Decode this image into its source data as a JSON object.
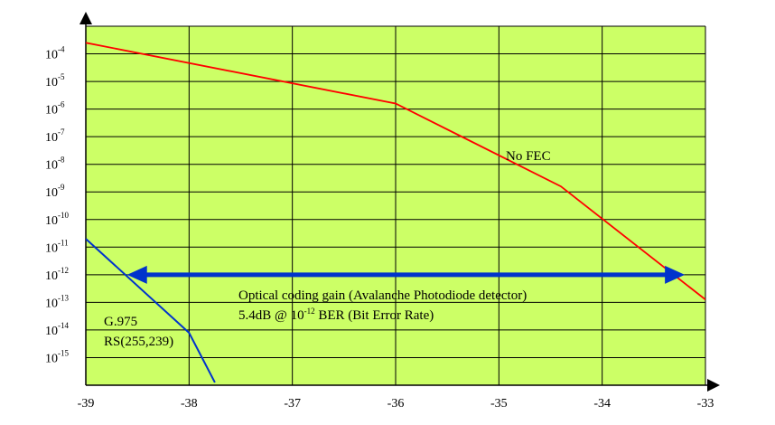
{
  "chart_data": {
    "type": "line",
    "title": "",
    "xlabel": "",
    "ylabel": "",
    "xlim": [
      -39,
      -33
    ],
    "y_scale": "log",
    "y_exponent_range": [
      -16,
      -3
    ],
    "grid": true,
    "plot_background": "#ccff66",
    "x_ticks": [
      "-39",
      "-38",
      "-37",
      "-36",
      "-35",
      "-34",
      "-33"
    ],
    "y_ticks": [
      {
        "base": "10",
        "exp": "-4"
      },
      {
        "base": "10",
        "exp": "-5"
      },
      {
        "base": "10",
        "exp": "-6"
      },
      {
        "base": "10",
        "exp": "-7"
      },
      {
        "base": "10",
        "exp": "-8"
      },
      {
        "base": "10",
        "exp": "-9"
      },
      {
        "base": "10",
        "exp": "-10"
      },
      {
        "base": "10",
        "exp": "-11"
      },
      {
        "base": "10",
        "exp": "-12"
      },
      {
        "base": "10",
        "exp": "-13"
      },
      {
        "base": "10",
        "exp": "-14"
      },
      {
        "base": "10",
        "exp": "-15"
      }
    ],
    "series": [
      {
        "name": "No FEC",
        "color": "#ff0000",
        "points": [
          [
            -39.0,
            -3.6
          ],
          [
            -36.0,
            -5.8
          ],
          [
            -34.4,
            -8.8
          ],
          [
            -33.0,
            -12.9
          ]
        ]
      },
      {
        "name": "G.975 RS(255,239)",
        "color": "#0033cc",
        "points": [
          [
            -39.0,
            -10.7
          ],
          [
            -38.0,
            -14.1
          ],
          [
            -37.75,
            -15.9
          ]
        ]
      }
    ],
    "annotations": {
      "no_fec_label": "No FEC",
      "rs_label_line1": "G.975",
      "rs_label_line2": "RS(255,239)",
      "gain_line1": "Optical coding gain (Avalanche Photodiode detector)",
      "gain_line2_a": "5.4dB @ ",
      "gain_line2_base": "10",
      "gain_line2_exp": "-12",
      "gain_line2_b": " BER (Bit Error Rate)",
      "gain_arrow": {
        "from": -38.6,
        "to": -33.2,
        "y_exp": -12,
        "color": "#0033cc"
      }
    }
  }
}
